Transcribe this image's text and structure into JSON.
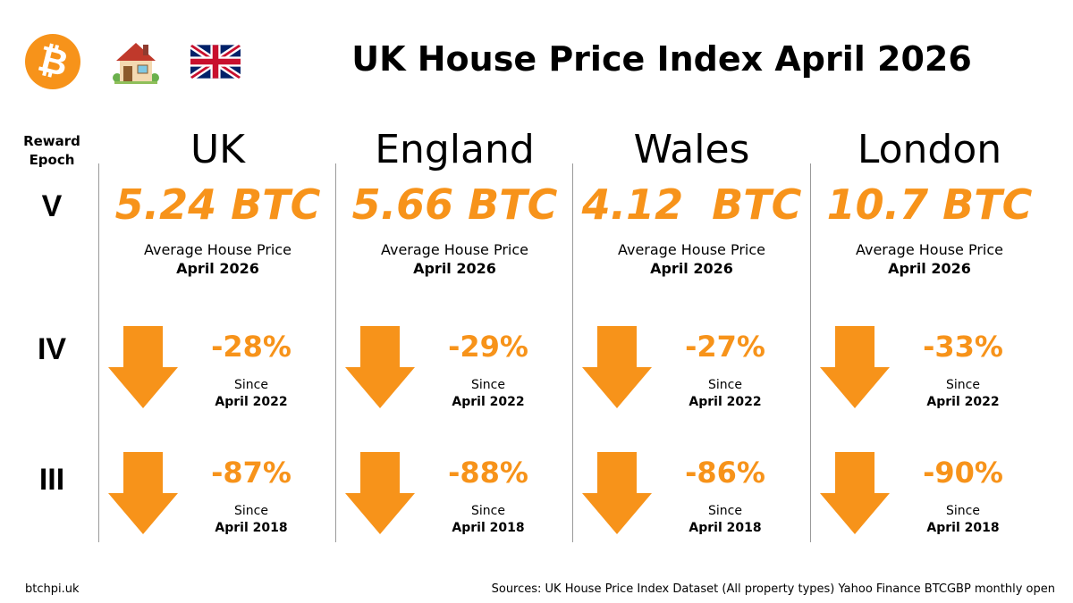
{
  "header": {
    "title": "UK House Price Index April 2026",
    "bitcoin_symbol": "₿",
    "icons": [
      "bitcoin-logo",
      "house-icon",
      "uk-flag-icon"
    ],
    "accent_color": "#f7931a"
  },
  "epochs": {
    "header": "Reward Epoch",
    "rows": [
      "V",
      "IV",
      "III"
    ]
  },
  "regions": [
    {
      "name": "UK",
      "avg_price": "5.24 BTC",
      "avg_label": "Average House Price",
      "avg_date": "April 2026",
      "changes": [
        {
          "pct": "-28%",
          "since": "Since",
          "date": "April 2022"
        },
        {
          "pct": "-87%",
          "since": "Since",
          "date": "April 2018"
        }
      ]
    },
    {
      "name": "England",
      "avg_price": "5.66 BTC",
      "avg_label": "Average House Price",
      "avg_date": "April 2026",
      "changes": [
        {
          "pct": "-29%",
          "since": "Since",
          "date": "April 2022"
        },
        {
          "pct": "-88%",
          "since": "Since",
          "date": "April 2018"
        }
      ]
    },
    {
      "name": "Wales",
      "avg_price": "4.12  BTC",
      "avg_label": "Average House Price",
      "avg_date": "April 2026",
      "changes": [
        {
          "pct": "-27%",
          "since": "Since",
          "date": "April 2022"
        },
        {
          "pct": "-86%",
          "since": "Since",
          "date": "April 2018"
        }
      ]
    },
    {
      "name": "London",
      "avg_price": "10.7 BTC",
      "avg_label": "Average House Price",
      "avg_date": "April 2026",
      "changes": [
        {
          "pct": "-33%",
          "since": "Since",
          "date": "April 2022"
        },
        {
          "pct": "-90%",
          "since": "Since",
          "date": "April 2018"
        }
      ]
    }
  ],
  "footer": {
    "site": "btchpi.uk",
    "sources": "Sources: UK House Price Index Dataset (All property types) Yahoo Finance BTCGBP monthly open"
  }
}
